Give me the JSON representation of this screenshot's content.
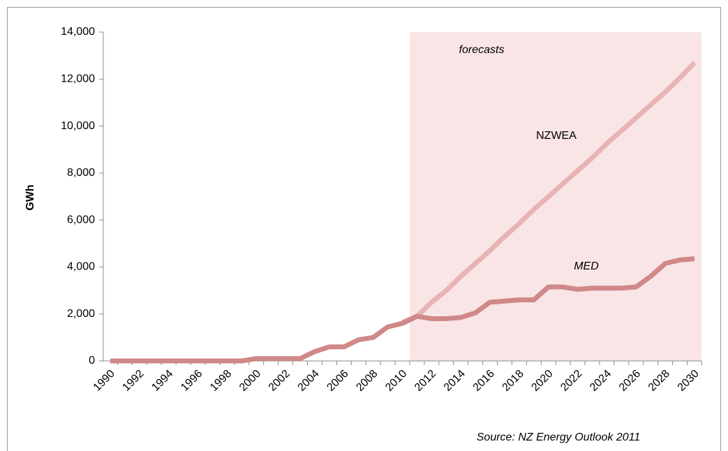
{
  "chart_data": {
    "type": "line",
    "y_label": "GWh",
    "annotation": "forecasts",
    "source": "Source: NZ Energy Outlook 2011",
    "categories": [
      "1990",
      null,
      "1992",
      null,
      "1994",
      null,
      "1996",
      null,
      "1998",
      null,
      "2000",
      null,
      "2002",
      null,
      "2004",
      null,
      "2006",
      null,
      "2008",
      null,
      "2010",
      null,
      "2012",
      null,
      "2014",
      null,
      "2016",
      null,
      "2018",
      null,
      "2020",
      null,
      "2022",
      null,
      "2024",
      null,
      "2026",
      null,
      "2028",
      null,
      "2030"
    ],
    "series": [
      {
        "name": "NZWEA",
        "color": "#e8b3b3",
        "values": [
          null,
          null,
          null,
          null,
          null,
          null,
          null,
          null,
          null,
          null,
          null,
          null,
          null,
          null,
          null,
          null,
          null,
          null,
          null,
          null,
          1650,
          1900,
          2500,
          3000,
          3600,
          4150,
          4700,
          5300,
          5850,
          6450,
          7000,
          7550,
          8100,
          8650,
          9250,
          9800,
          10350,
          10900,
          11450,
          12050,
          12700
        ]
      },
      {
        "name": "MED",
        "color": "#d08888",
        "values": [
          0,
          0,
          0,
          0,
          0,
          0,
          0,
          0,
          0,
          0,
          100,
          100,
          100,
          100,
          400,
          600,
          600,
          900,
          1000,
          1450,
          1600,
          1900,
          1800,
          1800,
          1850,
          2050,
          2500,
          2550,
          2600,
          2600,
          3150,
          3150,
          3050,
          3100,
          3100,
          3100,
          3150,
          3600,
          4150,
          4300,
          4350
        ]
      }
    ],
    "shade_color": "#f9e5e5",
    "ylim": [
      0,
      14000
    ],
    "yticks": [
      0,
      {
        "value": 2000,
        "label": "2,000"
      },
      {
        "value": 4000,
        "label": "4,000"
      },
      {
        "value": 6000,
        "label": "6,000"
      },
      {
        "value": 8000,
        "label": "8,000"
      },
      {
        "value": 10000,
        "label": "10,000"
      },
      {
        "value": 12000,
        "label": "12,000"
      },
      {
        "value": 14000,
        "label": "14,000"
      }
    ],
    "grid": false
  }
}
